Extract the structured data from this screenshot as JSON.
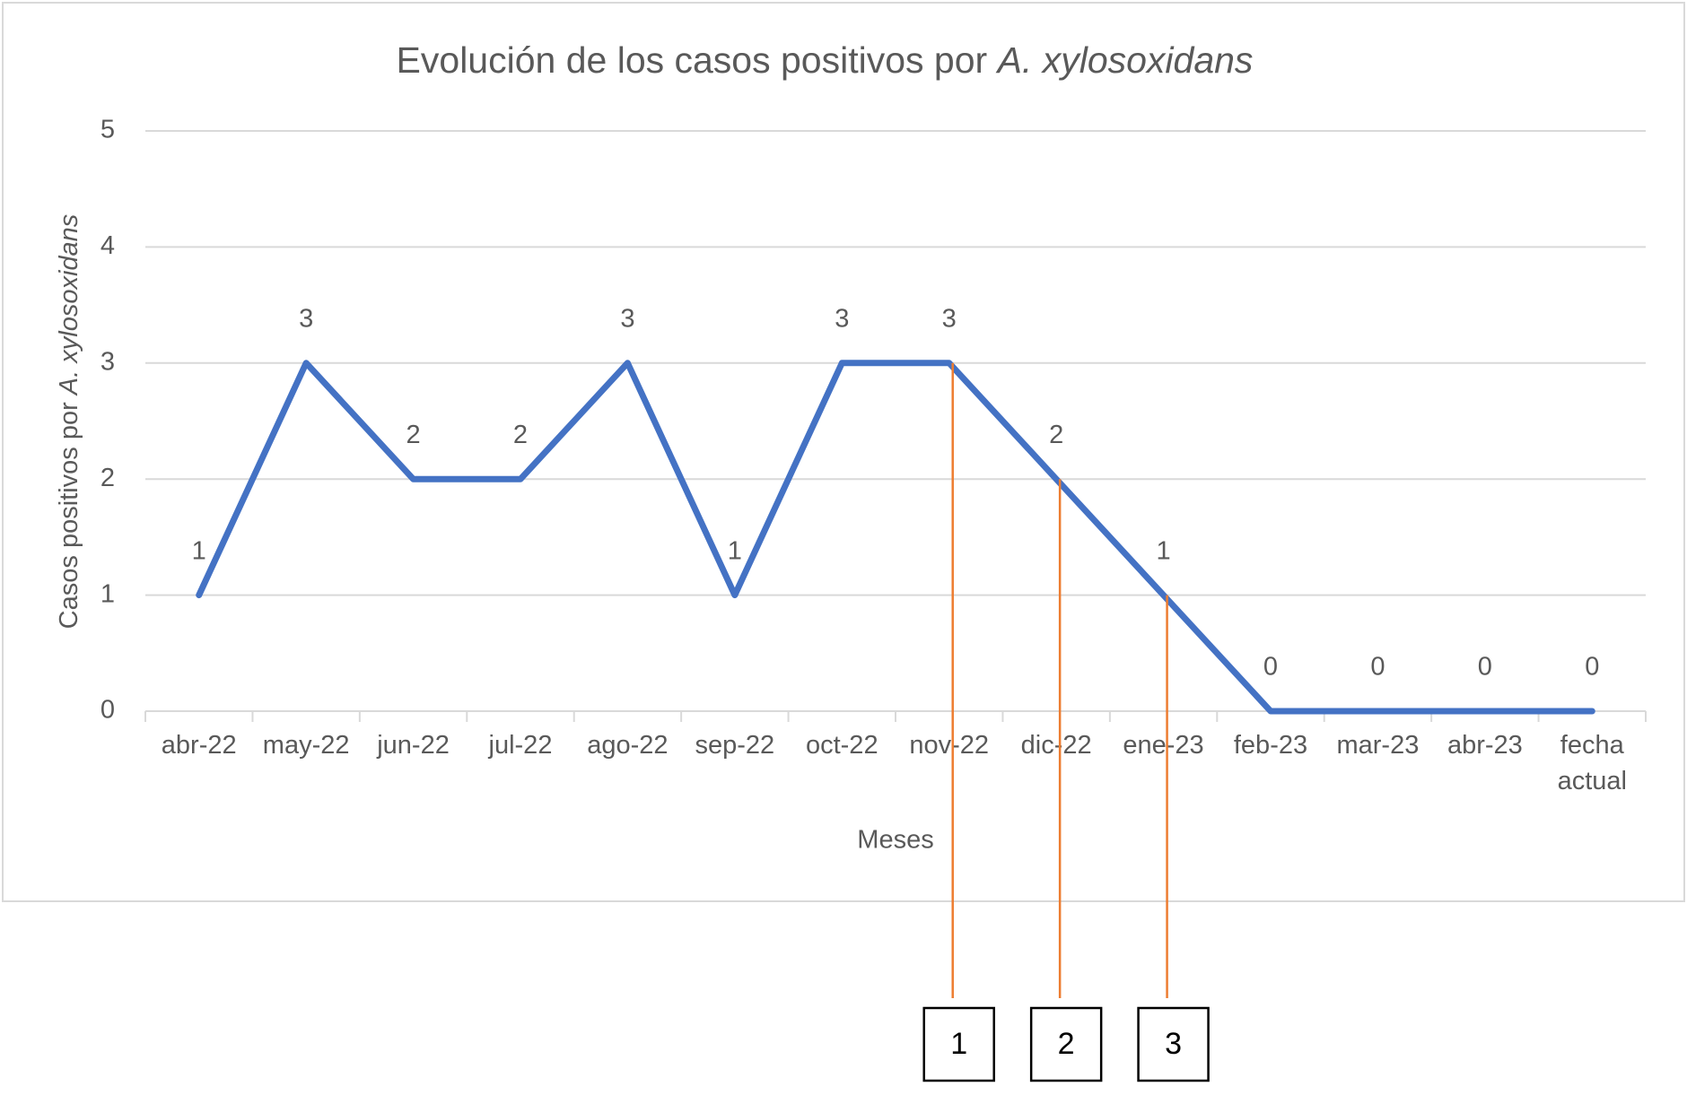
{
  "chart_data": {
    "type": "line",
    "title": "Evolución de los casos positivos por",
    "title_italic": "A. xylosoxidans",
    "y_label": "Casos positivos por",
    "y_label_italic": "A. xylosoxidans",
    "x_label": "Meses",
    "categories": [
      "abr-22",
      "may-22",
      "jun-22",
      "jul-22",
      "ago-22",
      "sep-22",
      "oct-22",
      "nov-22",
      "dic-22",
      "ene-23",
      "feb-23",
      "mar-23",
      "abr-23",
      "fecha actual"
    ],
    "series": [
      {
        "name": "Casos positivos",
        "color": "#4472c4",
        "values": [
          1,
          3,
          2,
          2,
          3,
          1,
          3,
          3,
          2,
          1,
          0,
          0,
          0,
          0
        ]
      }
    ],
    "ylim": [
      0,
      5
    ],
    "yticks": [
      0,
      1,
      2,
      3,
      4,
      5
    ],
    "grid": true,
    "data_labels": true,
    "annotations": [
      {
        "category": "nov-22",
        "label": "1",
        "color": "#ed7d31"
      },
      {
        "category": "dic-22",
        "label": "2",
        "color": "#ed7d31"
      },
      {
        "category": "ene-23",
        "label": "3",
        "color": "#ed7d31"
      }
    ]
  }
}
